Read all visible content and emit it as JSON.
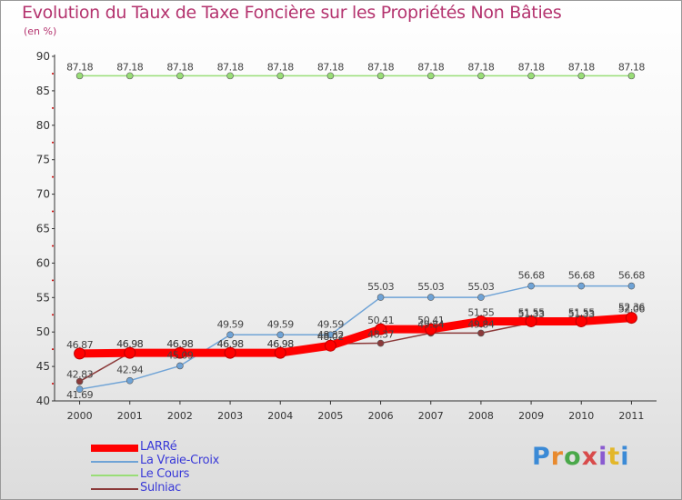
{
  "chart_data": {
    "type": "line",
    "title": "Evolution du Taux de Taxe Foncière sur les Propriétés Non Bâties",
    "subtitle": "(en %)",
    "xlabel": "",
    "ylabel": "(en %)",
    "categories": [
      "2000",
      "2001",
      "2002",
      "2003",
      "2004",
      "2005",
      "2006",
      "2007",
      "2008",
      "2009",
      "2010",
      "2011"
    ],
    "ylim": [
      40,
      90
    ],
    "yticks": [
      40,
      45,
      50,
      55,
      60,
      65,
      70,
      75,
      80,
      85,
      90
    ],
    "grid": false,
    "legend_position": "bottom-left",
    "series": [
      {
        "name": "LARRé",
        "color": "#ff0000",
        "values": [
          46.87,
          46.98,
          46.98,
          46.98,
          46.98,
          48.02,
          50.41,
          50.41,
          51.55,
          51.55,
          51.55,
          52.06
        ],
        "labels": [
          "46.87",
          "46.98",
          "46.98",
          "46.98",
          "46.98",
          "48.02",
          "50.41",
          "50.41",
          "51.55",
          "51.55",
          "51.55",
          "52.06"
        ]
      },
      {
        "name": "La Vraie-Croix",
        "color": "#6fa3d6",
        "values": [
          41.69,
          42.94,
          45.09,
          49.59,
          49.59,
          49.59,
          55.03,
          55.03,
          55.03,
          56.68,
          56.68,
          56.68
        ],
        "labels": [
          "41.69",
          "42.94",
          "45.09",
          "49.59",
          "49.59",
          "49.59",
          "55.03",
          "55.03",
          "55.03",
          "56.68",
          "56.68",
          "56.68"
        ]
      },
      {
        "name": "Le Cours",
        "color": "#99dd77",
        "values": [
          87.18,
          87.18,
          87.18,
          87.18,
          87.18,
          87.18,
          87.18,
          87.18,
          87.18,
          87.18,
          87.18,
          87.18
        ],
        "labels": [
          "87.18",
          "87.18",
          "87.18",
          "87.18",
          "87.18",
          "87.18",
          "87.18",
          "87.18",
          "87.18",
          "87.18",
          "87.18",
          "87.18"
        ]
      },
      {
        "name": "Sulniac",
        "color": "#8b3a3a",
        "values": [
          42.83,
          46.98,
          46.98,
          46.98,
          46.98,
          48.32,
          48.37,
          49.84,
          49.84,
          51.33,
          51.33,
          52.36
        ],
        "labels": [
          "42.83",
          "46.98",
          "46.98",
          "46.98",
          "46.98",
          "48.32",
          "48.37",
          "49.84",
          "49.84",
          "51.33",
          "51.33",
          "52.36"
        ]
      }
    ]
  },
  "legend": {
    "items": [
      {
        "label": "LARRé",
        "color": "#ff0000"
      },
      {
        "label": "La Vraie-Croix",
        "color": "#6fa3d6"
      },
      {
        "label": "Le Cours",
        "color": "#99dd77"
      },
      {
        "label": "Sulniac",
        "color": "#8b3a3a"
      }
    ]
  },
  "brand": {
    "logo_text": "Proxiti"
  }
}
